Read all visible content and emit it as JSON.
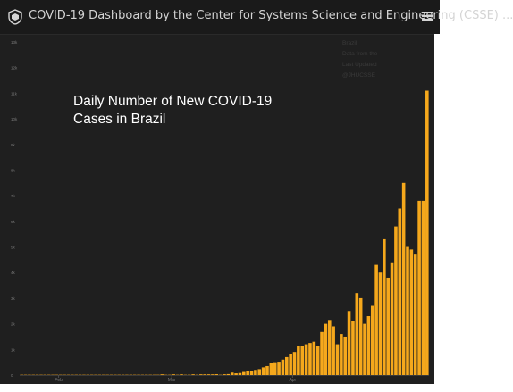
{
  "header": {
    "title": "COVID-19 Dashboard by the Center for Systems Science and Engineering (CSSE) ...",
    "logo_icon": "university-seal-icon",
    "menu_icon": "hamburger-menu-icon"
  },
  "colors": {
    "bar": "#f5a81c",
    "background": "#1f1f1f",
    "tick_text": "#7a7a7a"
  },
  "chart_data": {
    "type": "bar",
    "title": "Daily Number of New COVID-19 Cases in Brazil",
    "title_lines": [
      "Daily Number of New COVID-19",
      "Cases in Brazil"
    ],
    "ylim": [
      0,
      13000
    ],
    "grid": false,
    "yticks": [
      {
        "value": 0,
        "label": "0"
      },
      {
        "value": 1000,
        "label": "1k"
      },
      {
        "value": 2000,
        "label": "2k"
      },
      {
        "value": 3000,
        "label": "3k"
      },
      {
        "value": 4000,
        "label": "4k"
      },
      {
        "value": 5000,
        "label": "5k"
      },
      {
        "value": 6000,
        "label": "6k"
      },
      {
        "value": 7000,
        "label": "7k"
      },
      {
        "value": 8000,
        "label": "8k"
      },
      {
        "value": 9000,
        "label": "9k"
      },
      {
        "value": 10000,
        "label": "10k"
      },
      {
        "value": 11000,
        "label": "11k"
      },
      {
        "value": 12000,
        "label": "12k"
      },
      {
        "value": 13000,
        "label": "13k"
      }
    ],
    "xticks": [
      {
        "date": "Feb",
        "index": 10
      },
      {
        "date": "Mar",
        "index": 39
      },
      {
        "date": "Apr",
        "index": 70
      }
    ],
    "values": [
      0,
      0,
      0,
      0,
      0,
      0,
      0,
      0,
      0,
      0,
      0,
      0,
      0,
      0,
      0,
      0,
      0,
      0,
      0,
      0,
      0,
      0,
      0,
      0,
      0,
      0,
      0,
      0,
      0,
      0,
      0,
      0,
      0,
      0,
      0,
      0,
      1,
      0,
      0,
      1,
      0,
      1,
      0,
      0,
      3,
      0,
      5,
      7,
      20,
      25,
      33,
      0,
      31,
      38,
      95,
      68,
      79,
      120,
      150,
      170,
      200,
      230,
      300,
      350,
      480,
      500,
      520,
      600,
      700,
      830,
      900,
      1130,
      1140,
      1200,
      1250,
      1300,
      1150,
      1680,
      2000,
      2150,
      1900,
      1200,
      1600,
      1500,
      2500,
      2100,
      3200,
      3000,
      2000,
      2300,
      2700,
      4300,
      4000,
      5300,
      3800,
      4400,
      5800,
      6500,
      7500,
      5000,
      4900,
      4700,
      6800,
      6800,
      11100
    ]
  },
  "overlay": {
    "faint_lines": [
      "Brazil",
      "Data from the",
      "Last Updated",
      "@JHUCSSE"
    ]
  }
}
